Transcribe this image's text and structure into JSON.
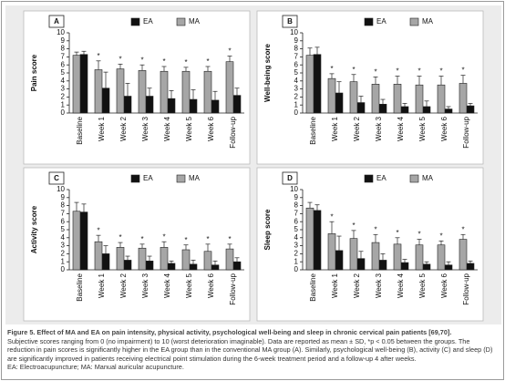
{
  "chart_data": [
    {
      "type": "bar",
      "panel": "A",
      "ylabel": "Pain score",
      "ylim": [
        0,
        10
      ],
      "yticks": [
        0,
        1,
        2,
        3,
        4,
        5,
        6,
        7,
        8,
        9,
        10
      ],
      "categories": [
        "Baseline",
        "Week 1",
        "Week 2",
        "Week 3",
        "Week 4",
        "Week 5",
        "Week 6",
        "Follow-up"
      ],
      "marker": "*",
      "significant": [
        false,
        true,
        true,
        true,
        true,
        true,
        true,
        true
      ],
      "series": [
        {
          "name": "EA",
          "color": "#111111",
          "values": [
            7.3,
            3.1,
            2.1,
            2.1,
            1.8,
            1.7,
            1.6,
            2.2
          ],
          "errors": [
            0.4,
            2.0,
            1.6,
            1.0,
            1.0,
            1.2,
            1.1,
            0.9
          ]
        },
        {
          "name": "MA",
          "color": "#a6a6a6",
          "values": [
            7.2,
            5.4,
            5.5,
            5.3,
            5.2,
            5.2,
            5.2,
            6.4
          ],
          "errors": [
            0.4,
            1.1,
            0.6,
            0.7,
            0.6,
            0.5,
            0.6,
            0.7
          ]
        }
      ]
    },
    {
      "type": "bar",
      "panel": "B",
      "ylabel": "Well-being score",
      "ylim": [
        0,
        10
      ],
      "yticks": [
        0,
        1,
        2,
        3,
        4,
        5,
        6,
        7,
        8,
        9,
        10
      ],
      "categories": [
        "Baseline",
        "Week 1",
        "Week 2",
        "Week 3",
        "Week 4",
        "Week 5",
        "Week 6",
        "Follow-up"
      ],
      "marker": "*",
      "significant": [
        false,
        true,
        true,
        true,
        true,
        true,
        true,
        true
      ],
      "series": [
        {
          "name": "EA",
          "color": "#111111",
          "values": [
            7.3,
            2.5,
            1.3,
            1.1,
            0.8,
            0.8,
            0.5,
            0.9
          ],
          "errors": [
            0.9,
            1.4,
            0.8,
            0.6,
            0.4,
            0.7,
            0.3,
            0.3
          ]
        },
        {
          "name": "MA",
          "color": "#a6a6a6",
          "values": [
            7.2,
            4.3,
            3.9,
            3.6,
            3.6,
            3.5,
            3.5,
            3.7
          ],
          "errors": [
            0.9,
            0.6,
            0.9,
            0.9,
            1.0,
            1.1,
            1.1,
            1.0
          ]
        }
      ]
    },
    {
      "type": "bar",
      "panel": "C",
      "ylabel": "Activity score",
      "ylim": [
        0,
        10
      ],
      "yticks": [
        0,
        1,
        2,
        3,
        4,
        5,
        6,
        7,
        8,
        9,
        10
      ],
      "categories": [
        "Baseline",
        "Week 1",
        "Week 2",
        "Week 3",
        "Week 4",
        "Week 5",
        "Week 6",
        "Follow-up"
      ],
      "marker": "*",
      "significant": [
        false,
        true,
        true,
        true,
        true,
        true,
        true,
        true
      ],
      "series": [
        {
          "name": "EA",
          "color": "#111111",
          "values": [
            7.2,
            2.0,
            1.2,
            1.1,
            0.8,
            0.7,
            0.6,
            1.0
          ],
          "errors": [
            1.0,
            1.0,
            0.5,
            0.6,
            0.3,
            0.5,
            0.5,
            0.5
          ]
        },
        {
          "name": "MA",
          "color": "#a6a6a6",
          "values": [
            7.3,
            3.5,
            2.8,
            2.7,
            2.8,
            2.5,
            2.3,
            2.6
          ],
          "errors": [
            1.1,
            0.8,
            0.6,
            0.5,
            0.7,
            0.6,
            0.9,
            0.6
          ]
        }
      ]
    },
    {
      "type": "bar",
      "panel": "D",
      "ylabel": "Sleep score",
      "ylim": [
        0,
        10
      ],
      "yticks": [
        0,
        1,
        2,
        3,
        4,
        5,
        6,
        7,
        8,
        9,
        10
      ],
      "categories": [
        "Baseline",
        "Week 1",
        "Week 2",
        "Week 3",
        "Week 4",
        "Week 5",
        "Week 6",
        "Follow-up"
      ],
      "marker": "*",
      "significant": [
        false,
        true,
        true,
        true,
        true,
        true,
        true,
        true
      ],
      "series": [
        {
          "name": "EA",
          "color": "#111111",
          "values": [
            7.4,
            2.4,
            1.4,
            1.2,
            0.9,
            0.7,
            0.6,
            0.8
          ],
          "errors": [
            0.7,
            1.8,
            0.9,
            0.8,
            0.4,
            0.3,
            0.4,
            0.3
          ]
        },
        {
          "name": "MA",
          "color": "#a6a6a6",
          "values": [
            7.7,
            4.5,
            3.9,
            3.4,
            3.2,
            3.1,
            3.1,
            3.8
          ],
          "errors": [
            0.7,
            1.5,
            1.0,
            1.0,
            0.8,
            0.7,
            0.5,
            0.6
          ]
        }
      ]
    }
  ],
  "caption": {
    "title": "Figure 5. Effect of MA and EA on pain intensity, physical activity, psychological well-being and sleep in chronic cervical pain patients [69,70].",
    "text": "Subjective scores ranging from 0 (no impairment) to 10 (worst deterioration imaginable). Data are reported as mean ± SD, *p < 0.05 between the groups. The reduction in pain scores is significantly higher in the EA group than in the conventional MA group (A). Similarly, psychological well-being (B), activity (C) and sleep (D) are significantly improved in patients receiving electrical point stimulation during the 6-week treatment period and a follow-up 4 after weeks.",
    "abbreviations": "EA: Electroacupuncture; MA: Manual auricular acupuncture."
  }
}
